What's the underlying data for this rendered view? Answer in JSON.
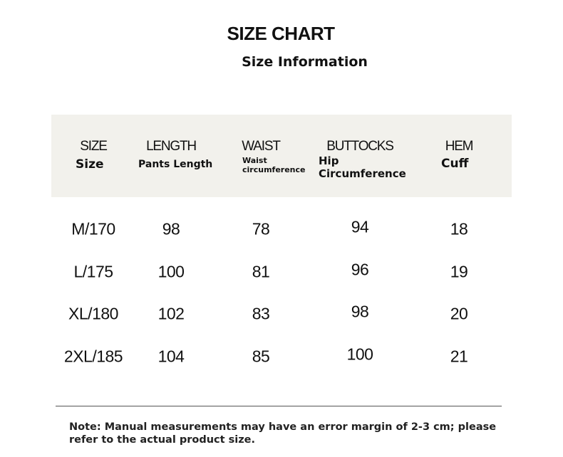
{
  "title": "SIZE CHART",
  "subtitle": "Size Information",
  "columns": [
    {
      "en": "SIZE",
      "sub": "Size"
    },
    {
      "en": "LENGTH",
      "sub": "Pants Length"
    },
    {
      "en": "WAIST",
      "sub": "Waist circumference"
    },
    {
      "en": "BUTTOCKS",
      "sub": "Hip Circumference"
    },
    {
      "en": "HEM",
      "sub": "Cuff"
    }
  ],
  "rows": [
    [
      "M/170",
      "98",
      "78",
      "94",
      "18"
    ],
    [
      "L/175",
      "100",
      "81",
      "96",
      "19"
    ],
    [
      "XL/180",
      "102",
      "83",
      "98",
      "20"
    ],
    [
      "2XL/185",
      "104",
      "85",
      "100",
      "21"
    ]
  ],
  "note": "Note: Manual measurements may have an error margin of 2-3 cm; please refer to the actual product size.",
  "colors": {
    "header_bg": "#f2f1ec",
    "text": "#111111"
  }
}
